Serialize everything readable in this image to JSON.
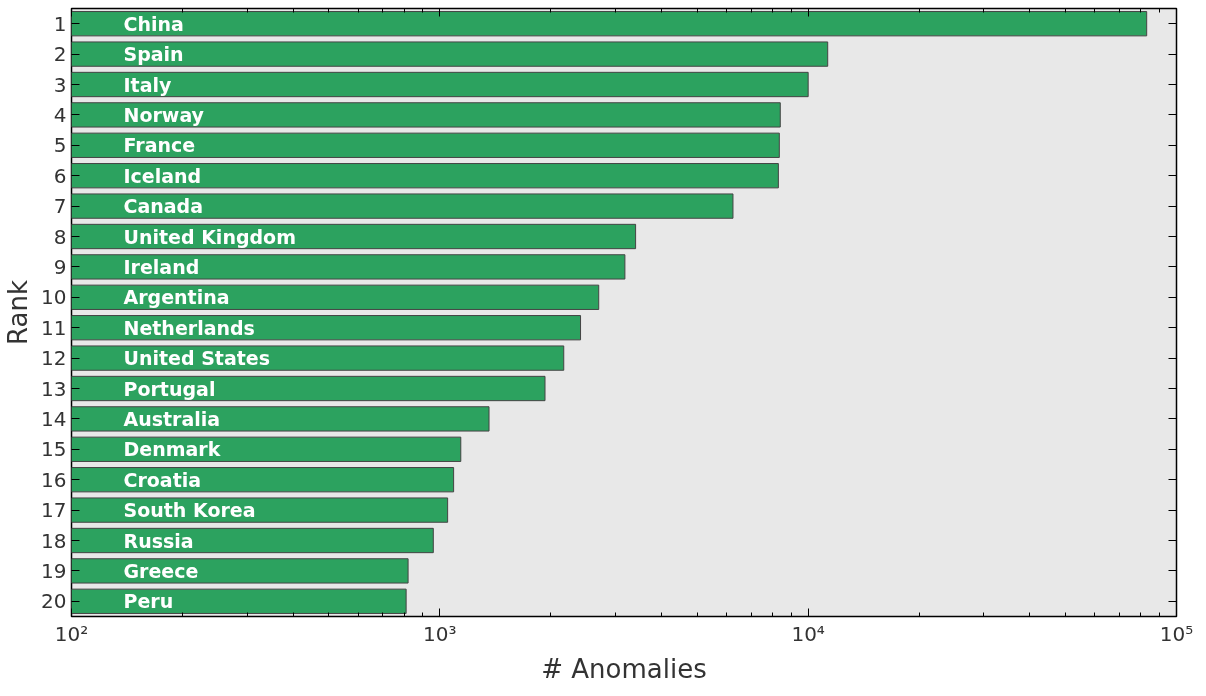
{
  "chart_data": {
    "type": "bar",
    "orientation": "horizontal",
    "log": "x",
    "xlabel": "# Anomalies",
    "ylabel": "Rank",
    "categories": [
      "1",
      "2",
      "3",
      "4",
      "5",
      "6",
      "7",
      "8",
      "9",
      "10",
      "11",
      "12",
      "13",
      "14",
      "15",
      "16",
      "17",
      "18",
      "19",
      "20"
    ],
    "values": [
      83000,
      11300,
      10000,
      8400,
      8350,
      8300,
      6250,
      3400,
      3180,
      2700,
      2410,
      2170,
      1930,
      1360,
      1140,
      1090,
      1050,
      960,
      820,
      810
    ],
    "color": "#2ca25f",
    "xlim": [
      100,
      100000
    ],
    "xticks": [
      {
        "value": 100,
        "label": "10²"
      },
      {
        "value": 1000,
        "label": "10³"
      },
      {
        "value": 10000,
        "label": "10⁴"
      },
      {
        "value": 100000,
        "label": "10⁵"
      }
    ],
    "grid": false,
    "annotations": [
      {
        "text": "China",
        "y": "1"
      },
      {
        "text": "Spain",
        "y": "2"
      },
      {
        "text": "Italy",
        "y": "3"
      },
      {
        "text": "Norway",
        "y": "4"
      },
      {
        "text": "France",
        "y": "5"
      },
      {
        "text": "Iceland",
        "y": "6"
      },
      {
        "text": "Canada",
        "y": "7"
      },
      {
        "text": "United Kingdom",
        "y": "8"
      },
      {
        "text": "Ireland",
        "y": "9"
      },
      {
        "text": "Argentina",
        "y": "10"
      },
      {
        "text": "Netherlands",
        "y": "11"
      },
      {
        "text": "United States",
        "y": "12"
      },
      {
        "text": "Portugal",
        "y": "13"
      },
      {
        "text": "Australia",
        "y": "14"
      },
      {
        "text": "Denmark",
        "y": "15"
      },
      {
        "text": "Croatia",
        "y": "16"
      },
      {
        "text": "South Korea",
        "y": "17"
      },
      {
        "text": "Russia",
        "y": "18"
      },
      {
        "text": "Greece",
        "y": "19"
      },
      {
        "text": "Peru",
        "y": "20"
      }
    ]
  }
}
